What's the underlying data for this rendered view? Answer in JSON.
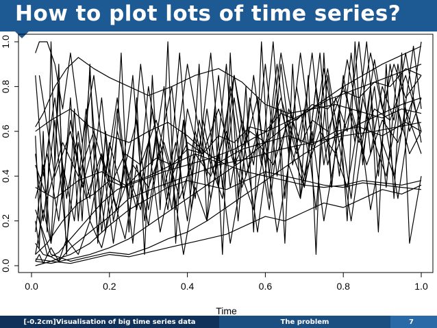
{
  "slide": {
    "title": "How to plot lots of time series?"
  },
  "footer": {
    "left": "[-0.2cm]Visualisation of big time series data",
    "middle": "The problem",
    "page": "7"
  },
  "colors": {
    "title_bar": "#1d5a93",
    "footer_left": "#10325a",
    "footer_middle": "#1b4f82",
    "footer_right": "#2a6aa6",
    "lines": "#000000"
  },
  "chart_data": {
    "type": "line",
    "title": "",
    "xlabel": "Time",
    "ylabel": "",
    "xlim": [
      0,
      1
    ],
    "ylim": [
      0,
      1
    ],
    "x_ticks": [
      "0.0",
      "0.2",
      "0.4",
      "0.6",
      "0.8",
      "1.0"
    ],
    "y_ticks": [
      "0.0",
      "0.2",
      "0.4",
      "0.6",
      "0.8",
      "1.0"
    ],
    "grid": false,
    "legend": "none",
    "series": [
      {
        "x": [
          0.01,
          0.03,
          0.06,
          0.09,
          0.12,
          0.16,
          0.2,
          0.25,
          0.3,
          0.36,
          0.42,
          0.48,
          0.54,
          0.6,
          0.66,
          0.72,
          0.78,
          0.84,
          0.9,
          0.95,
          1.0
        ],
        "values": [
          0.62,
          0.68,
          0.8,
          0.88,
          0.93,
          0.88,
          0.84,
          0.8,
          0.76,
          0.8,
          0.85,
          0.88,
          0.82,
          0.72,
          0.68,
          0.7,
          0.72,
          0.69,
          0.66,
          0.7,
          0.68
        ]
      },
      {
        "x": [
          0.01,
          0.02,
          0.04,
          0.07,
          0.1,
          0.15,
          0.2,
          0.25,
          0.32,
          0.4,
          0.48,
          0.56,
          0.64,
          0.72,
          0.8,
          0.88,
          0.94,
          1.0
        ],
        "values": [
          0.58,
          0.2,
          0.05,
          0.02,
          0.08,
          0.15,
          0.22,
          0.3,
          0.35,
          0.4,
          0.45,
          0.48,
          0.52,
          0.55,
          0.58,
          0.6,
          0.62,
          0.64
        ]
      },
      {
        "x": [
          0.01,
          0.03,
          0.05,
          0.07,
          0.1,
          0.14,
          0.18,
          0.22,
          0.28,
          0.34,
          0.4,
          0.46,
          0.52,
          0.58,
          0.64,
          0.7,
          0.76,
          0.82,
          0.88,
          0.94,
          1.0
        ],
        "values": [
          0.1,
          0.05,
          0.04,
          0.06,
          0.12,
          0.2,
          0.28,
          0.34,
          0.38,
          0.42,
          0.45,
          0.48,
          0.52,
          0.58,
          0.63,
          0.68,
          0.74,
          0.78,
          0.82,
          0.86,
          0.9
        ]
      },
      {
        "x": [
          0.01,
          0.05,
          0.1,
          0.15,
          0.2,
          0.25,
          0.3,
          0.35,
          0.4,
          0.45,
          0.5,
          0.55,
          0.6,
          0.65,
          0.7,
          0.75,
          0.8,
          0.85,
          0.9,
          0.95,
          1.0
        ],
        "values": [
          0.03,
          0.02,
          0.05,
          0.1,
          0.18,
          0.25,
          0.3,
          0.35,
          0.38,
          0.36,
          0.34,
          0.38,
          0.42,
          0.4,
          0.38,
          0.36,
          0.35,
          0.37,
          0.36,
          0.35,
          0.34
        ]
      },
      {
        "x": [
          0.01,
          0.02,
          0.03,
          0.04,
          0.05,
          0.06,
          0.07,
          0.08,
          0.1,
          0.12,
          0.15,
          0.18,
          0.22,
          0.26,
          0.3,
          0.35,
          0.4,
          0.46,
          0.52,
          0.58,
          0.64,
          0.7,
          0.76,
          0.82,
          0.88,
          0.94,
          1.0
        ],
        "values": [
          0.2,
          0.08,
          0.6,
          0.15,
          1.0,
          0.45,
          0.9,
          0.3,
          0.75,
          0.2,
          0.85,
          0.15,
          0.7,
          0.1,
          0.8,
          0.25,
          0.9,
          0.3,
          0.85,
          0.15,
          0.95,
          0.35,
          0.88,
          0.2,
          0.92,
          0.3,
          1.0
        ]
      },
      {
        "x": [
          0.01,
          0.03,
          0.05,
          0.08,
          0.11,
          0.14,
          0.17,
          0.2,
          0.23,
          0.26,
          0.29,
          0.32,
          0.35,
          0.38,
          0.41,
          0.44,
          0.47,
          0.5,
          0.53,
          0.56,
          0.59,
          0.62,
          0.65,
          0.68,
          0.71,
          0.74,
          0.77,
          0.8,
          0.83,
          0.86,
          0.89,
          0.92,
          0.95,
          0.98,
          1.0
        ],
        "values": [
          0.05,
          0.25,
          0.1,
          0.45,
          0.2,
          0.7,
          0.15,
          0.55,
          0.35,
          0.85,
          0.2,
          0.6,
          0.3,
          0.95,
          0.25,
          0.65,
          0.4,
          0.9,
          0.2,
          0.75,
          0.45,
          1.0,
          0.3,
          0.8,
          0.5,
          0.95,
          0.35,
          0.85,
          0.55,
          1.0,
          0.4,
          0.9,
          0.6,
          0.98,
          0.7
        ]
      },
      {
        "x": [
          0.01,
          0.04,
          0.07,
          0.1,
          0.13,
          0.16,
          0.19,
          0.22,
          0.25,
          0.28,
          0.31,
          0.34,
          0.37,
          0.4,
          0.43,
          0.46,
          0.49,
          0.52,
          0.55,
          0.58,
          0.61,
          0.64,
          0.67,
          0.7,
          0.73,
          0.76,
          0.79,
          0.82,
          0.85,
          0.88,
          0.91,
          0.94,
          0.97,
          1.0
        ],
        "values": [
          0.3,
          0.5,
          0.2,
          0.65,
          0.35,
          0.55,
          0.15,
          0.6,
          0.4,
          0.25,
          0.7,
          0.35,
          0.55,
          0.2,
          0.65,
          0.45,
          0.3,
          0.75,
          0.4,
          0.6,
          0.25,
          0.7,
          0.5,
          0.35,
          0.8,
          0.45,
          0.65,
          0.3,
          0.75,
          0.55,
          0.4,
          0.7,
          0.5,
          0.6
        ]
      },
      {
        "x": [
          0.01,
          0.03,
          0.06,
          0.09,
          0.12,
          0.15,
          0.18,
          0.21,
          0.24,
          0.27,
          0.3,
          0.33,
          0.36,
          0.39,
          0.42,
          0.45,
          0.48,
          0.51,
          0.54,
          0.57,
          0.6,
          0.63,
          0.66,
          0.69,
          0.72,
          0.75,
          0.78,
          0.81,
          0.84,
          0.87,
          0.9,
          0.93,
          0.96,
          1.0
        ],
        "values": [
          0.85,
          0.4,
          0.75,
          0.3,
          0.6,
          0.2,
          0.5,
          0.1,
          0.45,
          0.25,
          0.55,
          0.15,
          0.4,
          0.05,
          0.35,
          0.2,
          0.5,
          0.1,
          0.4,
          0.25,
          0.55,
          0.15,
          0.45,
          0.3,
          0.6,
          0.2,
          0.5,
          0.35,
          0.65,
          0.25,
          0.55,
          0.4,
          0.7,
          0.5
        ]
      },
      {
        "x": [
          0.01,
          0.05,
          0.1,
          0.15,
          0.2,
          0.25,
          0.3,
          0.35,
          0.4,
          0.45,
          0.5,
          0.55,
          0.6,
          0.65,
          0.7,
          0.75,
          0.8,
          0.85,
          0.9,
          0.95,
          1.0
        ],
        "values": [
          0.02,
          0.01,
          0.03,
          0.05,
          0.08,
          0.12,
          0.18,
          0.24,
          0.3,
          0.36,
          0.42,
          0.48,
          0.55,
          0.62,
          0.68,
          0.74,
          0.8,
          0.85,
          0.9,
          0.94,
          0.98
        ]
      },
      {
        "x": [
          0.01,
          0.04,
          0.08,
          0.12,
          0.16,
          0.2,
          0.24,
          0.28,
          0.32,
          0.36,
          0.4,
          0.44,
          0.48,
          0.52,
          0.56,
          0.6,
          0.64,
          0.68,
          0.72,
          0.76,
          0.8,
          0.84,
          0.88,
          0.92,
          0.96,
          1.0
        ],
        "values": [
          0.45,
          0.3,
          0.55,
          0.4,
          0.6,
          0.35,
          0.5,
          0.45,
          0.65,
          0.4,
          0.55,
          0.5,
          0.7,
          0.45,
          0.6,
          0.55,
          0.75,
          0.5,
          0.65,
          0.6,
          0.8,
          0.55,
          0.7,
          0.65,
          0.85,
          0.6
        ]
      },
      {
        "x": [
          0.01,
          0.02,
          0.04,
          0.06,
          0.08,
          0.1,
          0.13,
          0.16,
          0.19,
          0.22,
          0.25,
          0.28,
          0.31,
          0.34,
          0.37,
          0.4,
          0.43,
          0.46,
          0.49,
          0.52,
          0.55,
          0.58,
          0.61,
          0.64,
          0.67,
          0.7,
          0.73,
          0.76,
          0.79,
          0.82,
          0.85,
          0.88,
          0.91,
          0.94,
          0.97,
          1.0
        ],
        "values": [
          0.95,
          1.0,
          1.0,
          0.9,
          0.7,
          0.95,
          0.55,
          0.85,
          0.4,
          0.75,
          0.3,
          0.9,
          0.45,
          0.8,
          0.25,
          0.7,
          0.5,
          0.95,
          0.35,
          0.85,
          0.55,
          0.75,
          0.3,
          0.9,
          0.45,
          0.7,
          0.25,
          0.85,
          0.4,
          0.95,
          0.5,
          0.8,
          0.35,
          0.9,
          0.6,
          0.75
        ]
      },
      {
        "x": [
          0.01,
          0.05,
          0.1,
          0.15,
          0.2,
          0.25,
          0.3,
          0.35,
          0.4,
          0.45,
          0.5,
          0.55,
          0.6,
          0.65,
          0.7,
          0.75,
          0.8,
          0.85,
          0.9,
          0.95,
          1.0
        ],
        "values": [
          0.25,
          0.05,
          0.02,
          0.04,
          0.06,
          0.05,
          0.08,
          0.12,
          0.15,
          0.2,
          0.26,
          0.32,
          0.38,
          0.44,
          0.5,
          0.55,
          0.6,
          0.64,
          0.68,
          0.72,
          0.75
        ]
      },
      {
        "x": [
          0.01,
          0.03,
          0.05,
          0.07,
          0.09,
          0.11,
          0.13,
          0.15,
          0.17,
          0.19,
          0.21,
          0.23,
          0.25,
          0.27,
          0.29,
          0.31,
          0.33,
          0.35,
          0.37,
          0.39,
          0.41,
          0.43,
          0.45,
          0.47,
          0.49,
          0.51,
          0.53,
          0.55,
          0.57,
          0.59,
          0.61,
          0.63,
          0.65,
          0.67,
          0.69,
          0.71,
          0.73,
          0.75,
          0.77,
          0.79,
          0.81,
          0.83,
          0.85,
          0.87,
          0.89,
          0.91,
          0.93,
          0.95,
          0.97,
          1.0
        ],
        "values": [
          0.15,
          0.45,
          0.1,
          0.8,
          0.05,
          0.7,
          0.2,
          0.9,
          0.1,
          0.6,
          0.3,
          0.95,
          0.15,
          0.75,
          0.05,
          0.85,
          0.25,
          1.0,
          0.1,
          0.65,
          0.35,
          0.9,
          0.2,
          0.7,
          0.05,
          0.95,
          0.3,
          0.8,
          0.15,
          1.0,
          0.4,
          0.75,
          0.1,
          0.9,
          0.3,
          0.85,
          0.05,
          0.95,
          0.35,
          0.7,
          0.2,
          1.0,
          0.45,
          0.8,
          0.15,
          0.9,
          0.3,
          0.95,
          0.1,
          0.4
        ]
      },
      {
        "x": [
          0.01,
          0.04,
          0.08,
          0.12,
          0.16,
          0.2,
          0.24,
          0.28,
          0.32,
          0.36,
          0.4,
          0.44,
          0.48,
          0.52,
          0.56,
          0.6,
          0.64,
          0.68,
          0.72,
          0.76,
          0.8,
          0.84,
          0.88,
          0.92,
          0.96,
          1.0
        ],
        "values": [
          0.05,
          0.1,
          0.2,
          0.28,
          0.32,
          0.38,
          0.35,
          0.42,
          0.48,
          0.45,
          0.52,
          0.5,
          0.58,
          0.55,
          0.62,
          0.6,
          0.68,
          0.65,
          0.72,
          0.7,
          0.78,
          0.75,
          0.82,
          0.8,
          0.88,
          0.85
        ]
      },
      {
        "x": [
          0.01,
          0.05,
          0.1,
          0.15,
          0.2,
          0.25,
          0.3,
          0.35,
          0.4,
          0.45,
          0.5,
          0.55,
          0.6,
          0.65,
          0.7,
          0.75,
          0.8,
          0.85,
          0.9,
          0.95,
          1.0
        ],
        "values": [
          0.6,
          0.65,
          0.7,
          0.62,
          0.58,
          0.55,
          0.6,
          0.64,
          0.58,
          0.5,
          0.45,
          0.42,
          0.4,
          0.38,
          0.36,
          0.35,
          0.36,
          0.38,
          0.37,
          0.36,
          0.38
        ]
      },
      {
        "x": [
          0.01,
          0.02,
          0.03,
          0.05,
          0.07,
          0.09,
          0.12,
          0.15,
          0.18,
          0.21,
          0.24,
          0.27,
          0.3,
          0.33,
          0.36,
          0.39,
          0.42,
          0.45,
          0.48,
          0.51,
          0.54,
          0.57,
          0.6,
          0.63,
          0.66,
          0.69,
          0.72,
          0.75,
          0.78,
          0.81,
          0.84,
          0.87,
          0.9,
          0.93,
          0.96,
          1.0
        ],
        "values": [
          0.02,
          0.05,
          0.01,
          0.08,
          0.02,
          0.12,
          0.05,
          0.2,
          0.08,
          0.3,
          0.12,
          0.45,
          0.18,
          0.55,
          0.25,
          0.65,
          0.3,
          0.7,
          0.35,
          0.8,
          0.4,
          0.85,
          0.45,
          0.9,
          0.5,
          0.95,
          0.55,
          0.88,
          0.6,
          0.92,
          0.65,
          0.95,
          0.7,
          0.9,
          0.75,
          0.85
        ]
      },
      {
        "x": [
          0.01,
          0.06,
          0.12,
          0.18,
          0.24,
          0.3,
          0.36,
          0.42,
          0.48,
          0.54,
          0.6,
          0.66,
          0.72,
          0.78,
          0.84,
          0.9,
          0.96,
          1.0
        ],
        "values": [
          0.35,
          0.3,
          0.38,
          0.42,
          0.36,
          0.4,
          0.45,
          0.5,
          0.46,
          0.52,
          0.55,
          0.58,
          0.54,
          0.6,
          0.62,
          0.58,
          0.64,
          0.6
        ]
      },
      {
        "x": [
          0.01,
          0.03,
          0.06,
          0.09,
          0.12,
          0.15,
          0.18,
          0.21,
          0.24,
          0.27,
          0.3,
          0.33,
          0.36,
          0.39,
          0.42,
          0.45,
          0.48,
          0.51,
          0.54,
          0.57,
          0.6,
          0.63,
          0.66,
          0.69,
          0.72,
          0.75,
          0.78,
          0.81,
          0.84,
          0.87,
          0.9,
          0.93,
          0.96,
          1.0
        ],
        "values": [
          0.5,
          0.2,
          0.65,
          0.1,
          0.55,
          0.3,
          0.75,
          0.2,
          0.45,
          0.65,
          0.25,
          0.55,
          0.8,
          0.3,
          0.6,
          0.4,
          0.85,
          0.35,
          0.65,
          0.45,
          0.9,
          0.4,
          0.7,
          0.55,
          0.95,
          0.45,
          0.75,
          0.6,
          1.0,
          0.5,
          0.8,
          0.65,
          0.95,
          0.55
        ]
      },
      {
        "x": [
          0.01,
          0.05,
          0.1,
          0.15,
          0.2,
          0.25,
          0.3,
          0.35,
          0.4,
          0.45,
          0.5,
          0.55,
          0.6,
          0.65,
          0.7,
          0.75,
          0.8,
          0.85,
          0.9,
          0.95,
          1.0
        ],
        "values": [
          0.0,
          0.02,
          0.01,
          0.03,
          0.05,
          0.04,
          0.06,
          0.08,
          0.1,
          0.12,
          0.14,
          0.18,
          0.22,
          0.2,
          0.24,
          0.28,
          0.26,
          0.3,
          0.34,
          0.32,
          0.36
        ]
      },
      {
        "x": [
          0.02,
          0.06,
          0.1,
          0.14,
          0.18,
          0.22,
          0.26,
          0.3,
          0.34,
          0.38,
          0.42,
          0.46,
          0.5,
          0.54,
          0.58,
          0.62,
          0.66,
          0.7,
          0.74,
          0.78,
          0.82,
          0.86,
          0.9,
          0.94,
          0.98
        ],
        "values": [
          0.85,
          0.4,
          0.6,
          0.3,
          0.5,
          0.25,
          0.45,
          0.35,
          0.55,
          0.3,
          0.5,
          0.4,
          0.6,
          0.35,
          0.55,
          0.45,
          0.65,
          0.4,
          0.6,
          0.5,
          0.7,
          0.45,
          0.65,
          0.55,
          0.75
        ]
      }
    ]
  }
}
